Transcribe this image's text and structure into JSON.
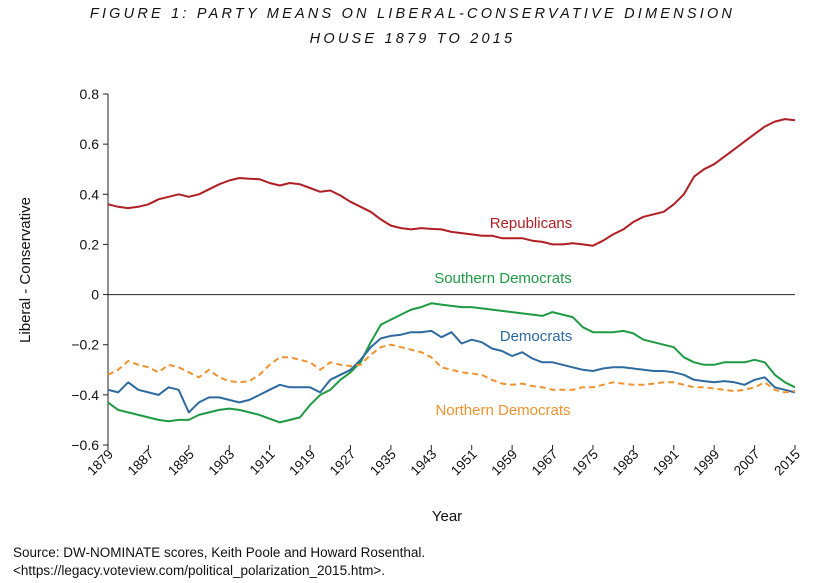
{
  "title_line1": "FIGURE 1: PARTY MEANS ON LIBERAL-CONSERVATIVE DIMENSION",
  "title_line2": "HOUSE 1879 TO 2015",
  "source_line1": "Source: DW-NOMINATE scores, Keith Poole and Howard Rosenthal.",
  "source_line2": "<https://legacy.voteview.com/political_polarization_2015.htm>.",
  "chart_data": {
    "type": "line",
    "xlabel": "Year",
    "ylabel": "Liberal - Conservative",
    "xlim": [
      1879,
      2015
    ],
    "ylim": [
      -0.6,
      0.8
    ],
    "yticks": [
      -0.6,
      -0.4,
      -0.2,
      0,
      0.2,
      0.4,
      0.6,
      0.8
    ],
    "ytick_labels": [
      "−0.6",
      "−0.4",
      "−0.2",
      "0",
      "0.2",
      "0.4",
      "0.6",
      "0.8"
    ],
    "xticks": [
      1879,
      1887,
      1895,
      1903,
      1911,
      1919,
      1927,
      1935,
      1943,
      1951,
      1959,
      1967,
      1975,
      1983,
      1991,
      1999,
      2007,
      2015
    ],
    "grid": false,
    "legend": "direct labels on lines",
    "x": [
      1879,
      1881,
      1883,
      1885,
      1887,
      1889,
      1891,
      1893,
      1895,
      1897,
      1899,
      1901,
      1903,
      1905,
      1907,
      1909,
      1911,
      1913,
      1915,
      1917,
      1919,
      1921,
      1923,
      1925,
      1927,
      1929,
      1931,
      1933,
      1935,
      1937,
      1939,
      1941,
      1943,
      1945,
      1947,
      1949,
      1951,
      1953,
      1955,
      1957,
      1959,
      1961,
      1963,
      1965,
      1967,
      1969,
      1971,
      1973,
      1975,
      1977,
      1979,
      1981,
      1983,
      1985,
      1987,
      1989,
      1991,
      1993,
      1995,
      1997,
      1999,
      2001,
      2003,
      2005,
      2007,
      2009,
      2011,
      2013,
      2015
    ],
    "series": [
      {
        "name": "Republicans",
        "color": "#b01f24",
        "dash": "solid",
        "values": [
          0.36,
          0.35,
          0.345,
          0.35,
          0.36,
          0.38,
          0.39,
          0.4,
          0.39,
          0.4,
          0.42,
          0.44,
          0.455,
          0.465,
          0.462,
          0.46,
          0.445,
          0.435,
          0.445,
          0.44,
          0.425,
          0.41,
          0.415,
          0.395,
          0.37,
          0.35,
          0.33,
          0.3,
          0.275,
          0.265,
          0.26,
          0.265,
          0.262,
          0.26,
          0.25,
          0.245,
          0.24,
          0.235,
          0.235,
          0.225,
          0.225,
          0.225,
          0.215,
          0.21,
          0.2,
          0.2,
          0.205,
          0.2,
          0.195,
          0.215,
          0.24,
          0.26,
          0.29,
          0.31,
          0.32,
          0.33,
          0.36,
          0.4,
          0.47,
          0.5,
          0.52,
          0.55,
          0.58,
          0.61,
          0.64,
          0.67,
          0.69,
          0.7,
          0.695
        ]
      },
      {
        "name": "Southern Democrats",
        "color": "#1f9a44",
        "dash": "solid",
        "values": [
          -0.43,
          -0.46,
          -0.47,
          -0.48,
          -0.49,
          -0.5,
          -0.505,
          -0.5,
          -0.5,
          -0.48,
          -0.47,
          -0.46,
          -0.455,
          -0.46,
          -0.47,
          -0.48,
          -0.495,
          -0.51,
          -0.5,
          -0.49,
          -0.44,
          -0.4,
          -0.38,
          -0.34,
          -0.31,
          -0.27,
          -0.19,
          -0.12,
          -0.1,
          -0.08,
          -0.06,
          -0.05,
          -0.035,
          -0.04,
          -0.045,
          -0.05,
          -0.05,
          -0.055,
          -0.06,
          -0.065,
          -0.07,
          -0.075,
          -0.08,
          -0.085,
          -0.07,
          -0.08,
          -0.09,
          -0.13,
          -0.15,
          -0.15,
          -0.15,
          -0.145,
          -0.155,
          -0.18,
          -0.19,
          -0.2,
          -0.21,
          -0.25,
          -0.27,
          -0.28,
          -0.28,
          -0.27,
          -0.27,
          -0.27,
          -0.26,
          -0.27,
          -0.32,
          -0.35,
          -0.37
        ]
      },
      {
        "name": "Democrats",
        "color": "#2e6aa0",
        "dash": "solid",
        "values": [
          -0.38,
          -0.39,
          -0.35,
          -0.38,
          -0.39,
          -0.4,
          -0.37,
          -0.38,
          -0.47,
          -0.43,
          -0.41,
          -0.41,
          -0.42,
          -0.43,
          -0.42,
          -0.4,
          -0.38,
          -0.36,
          -0.37,
          -0.37,
          -0.37,
          -0.39,
          -0.34,
          -0.32,
          -0.3,
          -0.26,
          -0.21,
          -0.175,
          -0.165,
          -0.16,
          -0.15,
          -0.15,
          -0.145,
          -0.17,
          -0.15,
          -0.195,
          -0.18,
          -0.19,
          -0.215,
          -0.225,
          -0.245,
          -0.23,
          -0.255,
          -0.27,
          -0.27,
          -0.28,
          -0.29,
          -0.3,
          -0.305,
          -0.295,
          -0.29,
          -0.29,
          -0.295,
          -0.3,
          -0.305,
          -0.305,
          -0.31,
          -0.32,
          -0.34,
          -0.345,
          -0.35,
          -0.345,
          -0.35,
          -0.36,
          -0.34,
          -0.33,
          -0.37,
          -0.38,
          -0.39
        ]
      },
      {
        "name": "Northern Democrats",
        "color": "#f0922e",
        "dash": "dashed",
        "values": [
          -0.32,
          -0.3,
          -0.265,
          -0.28,
          -0.29,
          -0.31,
          -0.28,
          -0.29,
          -0.31,
          -0.33,
          -0.3,
          -0.33,
          -0.345,
          -0.35,
          -0.345,
          -0.32,
          -0.28,
          -0.25,
          -0.25,
          -0.26,
          -0.27,
          -0.3,
          -0.27,
          -0.28,
          -0.285,
          -0.28,
          -0.24,
          -0.21,
          -0.2,
          -0.21,
          -0.22,
          -0.23,
          -0.25,
          -0.29,
          -0.3,
          -0.31,
          -0.315,
          -0.32,
          -0.34,
          -0.355,
          -0.36,
          -0.355,
          -0.365,
          -0.37,
          -0.38,
          -0.38,
          -0.38,
          -0.37,
          -0.37,
          -0.36,
          -0.35,
          -0.355,
          -0.36,
          -0.36,
          -0.355,
          -0.35,
          -0.35,
          -0.36,
          -0.37,
          -0.37,
          -0.375,
          -0.38,
          -0.385,
          -0.38,
          -0.37,
          -0.35,
          -0.38,
          -0.39,
          -0.385
        ]
      }
    ]
  }
}
